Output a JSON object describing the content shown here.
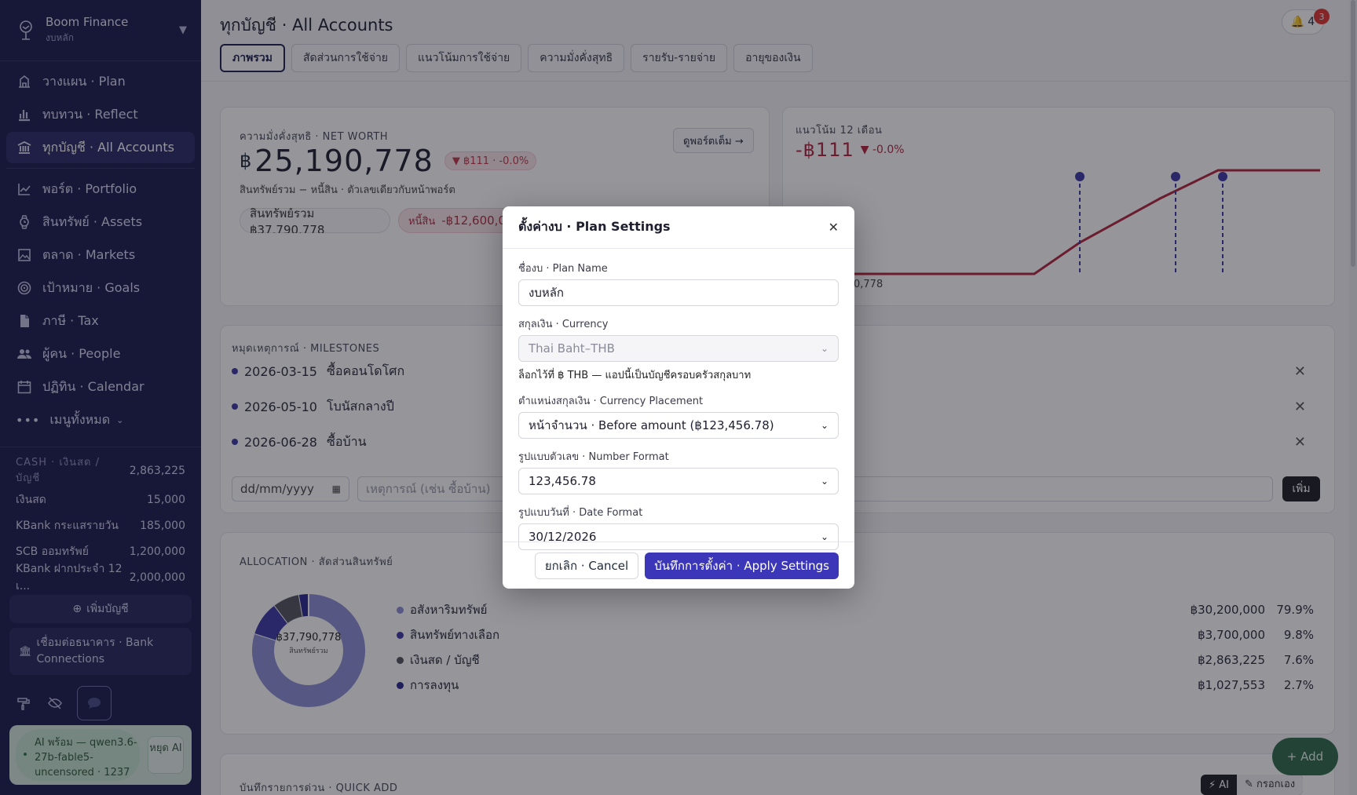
{
  "sidebar": {
    "org_name": "Boom Finance",
    "org_sub": "งบหลัก",
    "nav": [
      {
        "label": "วางแผน · Plan",
        "icon": "plan-icon"
      },
      {
        "label": "ทบทวน · Reflect",
        "icon": "bar-chart-icon"
      },
      {
        "label": "ทุกบัญชี · All Accounts",
        "icon": "bank-icon",
        "active": true
      },
      {
        "label": "พอร์ต · Portfolio",
        "icon": "line-chart-icon"
      },
      {
        "label": "สินทรัพย์ · Assets",
        "icon": "watch-icon"
      },
      {
        "label": "ตลาด · Markets",
        "icon": "image-icon"
      },
      {
        "label": "เป้าหมาย · Goals",
        "icon": "target-icon"
      },
      {
        "label": "ภาษี · Tax",
        "icon": "document-icon"
      },
      {
        "label": "ผู้คน · People",
        "icon": "people-icon"
      },
      {
        "label": "ปฏิทิน · Calendar",
        "icon": "calendar-icon"
      }
    ],
    "more_label": "เมนูทั้งหมด",
    "cash_header": "CASH · เงินสด / บัญชี",
    "cash_total": "2,863,225",
    "cash_rows": [
      {
        "name": "เงินสด",
        "amount": "15,000"
      },
      {
        "name": "KBank กระแสรายวัน",
        "amount": "185,000"
      },
      {
        "name": "SCB ออมทรัพย์",
        "amount": "1,200,000"
      },
      {
        "name": "KBank ฝากประจำ 12 เ...",
        "amount": "2,000,000"
      }
    ],
    "add_account": "เพิ่มบัญชี",
    "bank_connections": "เชื่อมต่อธนาคาร · Bank Connections",
    "ai_status": "AI พร้อม — qwen3.6-27b-fable5-uncensored · 1237",
    "ai_stop": "หยุด AI"
  },
  "header": {
    "title": "ทุกบัญชี · All Accounts",
    "bell_count": "4",
    "badge": "3",
    "tabs": [
      "ภาพรวม",
      "สัดส่วนการใช้จ่าย",
      "แนวโน้มการใช้จ่าย",
      "ความมั่งคั่งสุทธิ",
      "รายรับ-รายจ่าย",
      "อายุของเงิน"
    ]
  },
  "net_worth": {
    "label": "ความมั่งคั่งสุทธิ · NET WORTH",
    "currency": "฿",
    "value": "25,190,778",
    "delta": "▼ ฿111 · -0.0%",
    "sub": "สินทรัพย์รวม − หนี้สิน · ตัวเลขเดียวกับหน้าพอร์ต",
    "assets_chip": "สินทรัพย์รวม ฿37,790,778",
    "debt_label": "หนี้สิน",
    "debt_value": "-฿12,600,0",
    "portfolio_link": "ดูพอร์ตเต็ม →"
  },
  "trend": {
    "label": "แนวโน้ม 12 เดือน",
    "value": "-฿111",
    "delta": "▼ -0.0%",
    "axis_label": "0,778"
  },
  "milestones": {
    "label": "หมุดเหตุการณ์ · MILESTONES",
    "items": [
      {
        "date": "2026-03-15",
        "text": "ซื้อคอนโดโศก"
      },
      {
        "date": "2026-05-10",
        "text": "โบนัสกลางปี"
      },
      {
        "date": "2026-06-28",
        "text": "ซื้อบ้าน"
      }
    ],
    "date_placeholder": "dd/mm/yyyy",
    "event_placeholder": "เหตุการณ์ (เช่น ซื้อบ้าน)",
    "add_button": "เพิ่ม"
  },
  "allocation": {
    "label": "ALLOCATION · สัดส่วนสินทรัพย์",
    "center_value": "฿37,790,778",
    "center_sub": "สินทรัพย์รวม",
    "items": [
      {
        "name": "อสังหาริมทรัพย์",
        "amount": "฿30,200,000",
        "pct": "79.9%",
        "color": "#8c90d6",
        "value": 79.9
      },
      {
        "name": "สินทรัพย์ทางเลือก",
        "amount": "฿3,700,000",
        "pct": "9.8%",
        "color": "#3d3aa6",
        "value": 9.8
      },
      {
        "name": "เงินสด / บัญชี",
        "amount": "฿2,863,225",
        "pct": "7.6%",
        "color": "#555560",
        "value": 7.6
      },
      {
        "name": "การลงทุน",
        "amount": "฿1,027,553",
        "pct": "2.7%",
        "color": "#2a2890",
        "value": 2.7
      }
    ]
  },
  "quick_add": {
    "label": "บันทึกรายการด่วน · QUICK ADD",
    "ai_btn": "⚡ AI",
    "manual_btn": "✎ กรอกเอง"
  },
  "fab_label": "+ Add",
  "modal": {
    "title": "ตั้งค่างบ · Plan Settings",
    "plan_name_label": "ชื่องบ · Plan Name",
    "plan_name_value": "งบหลัก",
    "currency_label": "สกุลเงิน · Currency",
    "currency_value": "Thai Baht–THB",
    "currency_hint": "ล็อกไว้ที่ ฿ THB — แอปนี้เป็นบัญชีครอบครัวสกุลบาท",
    "placement_label": "ตำแหน่งสกุลเงิน · Currency Placement",
    "placement_value": "หน้าจำนวน · Before amount (฿123,456.78)",
    "number_label": "รูปแบบตัวเลข · Number Format",
    "number_value": "123,456.78",
    "date_label": "รูปแบบวันที่ · Date Format",
    "date_value": "30/12/2026",
    "cancel": "ยกเลิก · Cancel",
    "apply": "บันทึกการตั้งค่า · Apply Settings"
  },
  "colors": {
    "sidebar": "#1b1b4b",
    "accent": "#3b37b8",
    "trend_line": "#b3263d",
    "marker": "#3d3aa6"
  }
}
